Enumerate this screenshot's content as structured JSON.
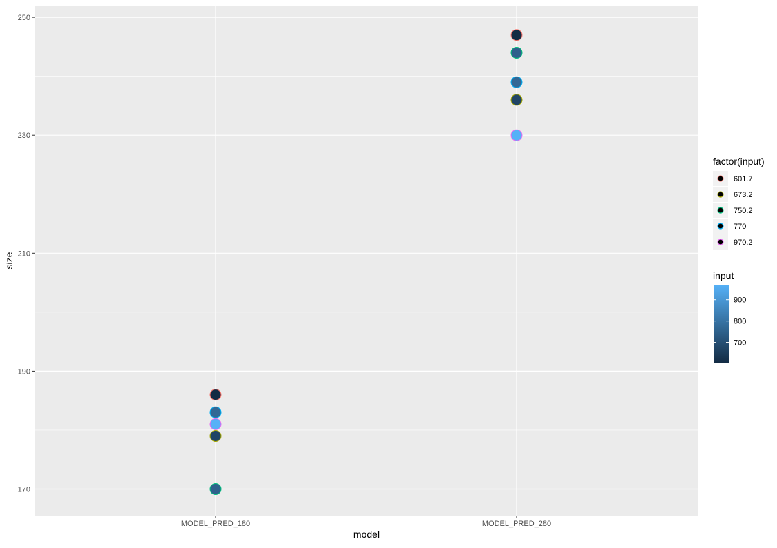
{
  "chart_data": {
    "type": "scatter",
    "xlabel": "model",
    "ylabel": "size",
    "categories": [
      "MODEL_PRED_180",
      "MODEL_PRED_280"
    ],
    "ylim": [
      165.5,
      252
    ],
    "y_ticks": [
      170,
      190,
      210,
      230,
      250
    ],
    "y_minor_ticks": [
      180,
      200,
      220,
      240
    ],
    "grid": true,
    "background": "#ebebeb",
    "points": [
      {
        "x": "MODEL_PRED_180",
        "y": 186,
        "input": 601.7
      },
      {
        "x": "MODEL_PRED_180",
        "y": 183,
        "input": 770
      },
      {
        "x": "MODEL_PRED_180",
        "y": 181,
        "input": 970.2
      },
      {
        "x": "MODEL_PRED_180",
        "y": 179,
        "input": 673.2
      },
      {
        "x": "MODEL_PRED_180",
        "y": 170,
        "input": 750.2
      },
      {
        "x": "MODEL_PRED_280",
        "y": 247,
        "input": 601.7
      },
      {
        "x": "MODEL_PRED_280",
        "y": 244,
        "input": 750.2
      },
      {
        "x": "MODEL_PRED_280",
        "y": 239,
        "input": 770
      },
      {
        "x": "MODEL_PRED_280",
        "y": 236,
        "input": 673.2
      },
      {
        "x": "MODEL_PRED_280",
        "y": 230,
        "input": 970.2
      }
    ],
    "legend_outline": {
      "title": "factor(input)",
      "placement": "right",
      "entries": [
        {
          "label": "601.7",
          "value": 601.7,
          "color": "#f8766d"
        },
        {
          "label": "673.2",
          "value": 673.2,
          "color": "#a3a500"
        },
        {
          "label": "750.2",
          "value": 750.2,
          "color": "#00bf7d"
        },
        {
          "label": "770",
          "value": 770,
          "color": "#00b0f6"
        },
        {
          "label": "970.2",
          "value": 970.2,
          "color": "#e76bf3"
        }
      ]
    },
    "legend_fill": {
      "title": "input",
      "placement": "right",
      "gradient_low": "#132b43",
      "gradient_high": "#56b1f7",
      "range": [
        601.7,
        970.2
      ],
      "ticks": [
        {
          "label": "900",
          "value": 900
        },
        {
          "label": "800",
          "value": 800
        },
        {
          "label": "700",
          "value": 700
        }
      ]
    }
  }
}
